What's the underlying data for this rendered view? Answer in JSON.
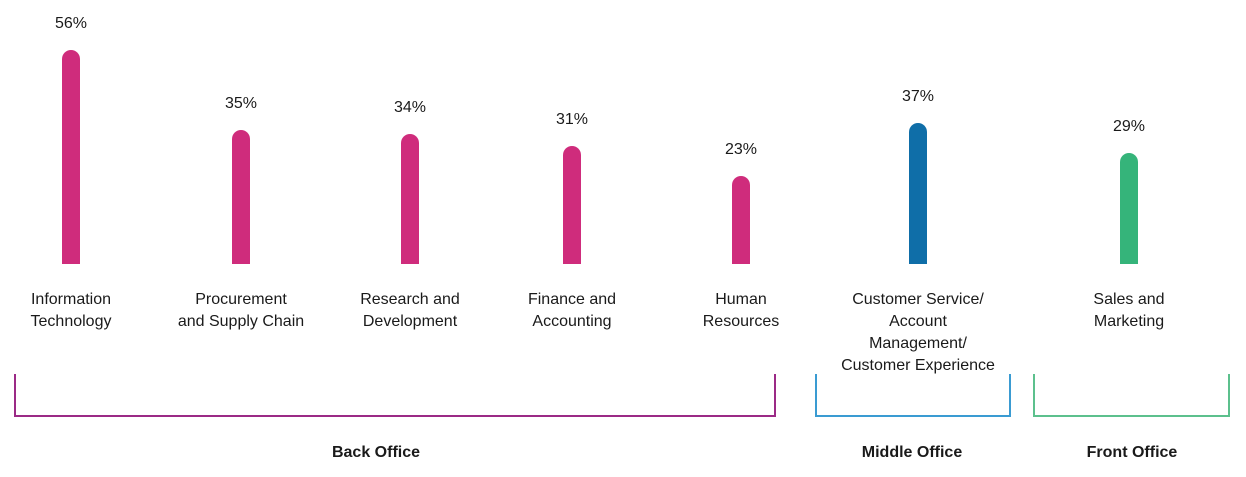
{
  "chart_data": {
    "type": "bar",
    "title": "",
    "xlabel": "",
    "ylabel": "",
    "ylim": [
      0,
      56
    ],
    "value_suffix": "%",
    "grid": false,
    "categories": [
      "Information\nTechnology",
      "Procurement\nand Supply Chain",
      "Research and\nDevelopment",
      "Finance and\nAccounting",
      "Human\nResources",
      "Customer Service/\nAccount\nManagement/\nCustomer Experience",
      "Sales and\nMarketing"
    ],
    "values": [
      56,
      35,
      34,
      31,
      23,
      37,
      29
    ],
    "value_labels": [
      "56%",
      "35%",
      "34%",
      "31%",
      "23%",
      "37%",
      "29%"
    ],
    "bar_groups": [
      0,
      0,
      0,
      0,
      0,
      1,
      2
    ],
    "groups": [
      {
        "name": "Back Office",
        "color": "#9b2a86"
      },
      {
        "name": "Middle Office",
        "color": "#3a9bd2"
      },
      {
        "name": "Front Office",
        "color": "#5cc08d"
      }
    ],
    "bar_colors": [
      "#cf2c7c",
      "#cf2c7c",
      "#cf2c7c",
      "#cf2c7c",
      "#cf2c7c",
      "#0f6ea8",
      "#35b47a"
    ]
  }
}
